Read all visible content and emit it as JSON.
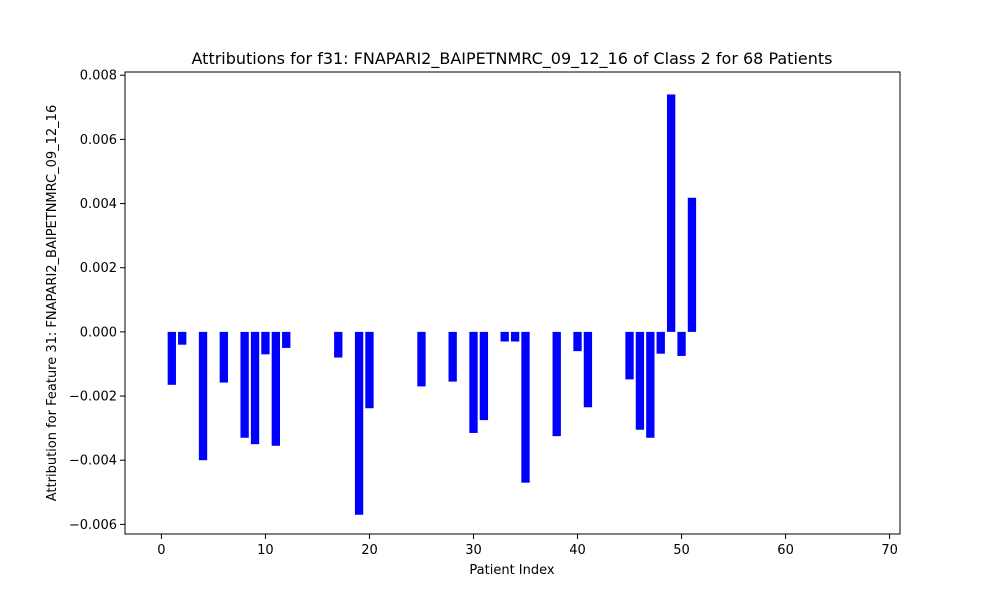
{
  "chart_data": {
    "type": "bar",
    "title": "Attributions for f31: FNAPARI2_BAIPETNMRC_09_12_16 of Class 2 for 68 Patients",
    "xlabel": "Patient Index",
    "ylabel": "Attribution for Feature 31: FNAPARI2_BAIPETNMRC_09_12_16",
    "xlim": [
      -3.5,
      71
    ],
    "ylim": [
      -0.0063,
      0.0081
    ],
    "xticks": [
      0,
      10,
      20,
      30,
      40,
      50,
      60,
      70
    ],
    "xtick_labels": [
      "0",
      "10",
      "20",
      "30",
      "40",
      "50",
      "60",
      "70"
    ],
    "yticks": [
      -0.006,
      -0.004,
      -0.002,
      0.0,
      0.002,
      0.004,
      0.006,
      0.008
    ],
    "ytick_labels": [
      "−0.006",
      "−0.004",
      "−0.002",
      "0.000",
      "0.002",
      "0.004",
      "0.006",
      "0.008"
    ],
    "bar_color": "#0000ff",
    "grid": false,
    "x": [
      1,
      2,
      4,
      6,
      8,
      9,
      10,
      11,
      12,
      17,
      19,
      20,
      25,
      28,
      30,
      31,
      33,
      34,
      35,
      38,
      40,
      41,
      45,
      46,
      47,
      48,
      49,
      50,
      51
    ],
    "values": [
      -0.00165,
      -0.0004,
      -0.004,
      -0.00158,
      -0.0033,
      -0.0035,
      -0.0007,
      -0.00355,
      -0.0005,
      -0.0008,
      -0.0057,
      -0.00238,
      -0.0017,
      -0.00155,
      -0.00315,
      -0.00275,
      -0.0003,
      -0.0003,
      -0.0047,
      -0.00325,
      -0.0006,
      -0.00235,
      -0.00148,
      -0.00305,
      -0.0033,
      -0.00068,
      0.0074,
      -0.00075,
      0.00418
    ]
  }
}
